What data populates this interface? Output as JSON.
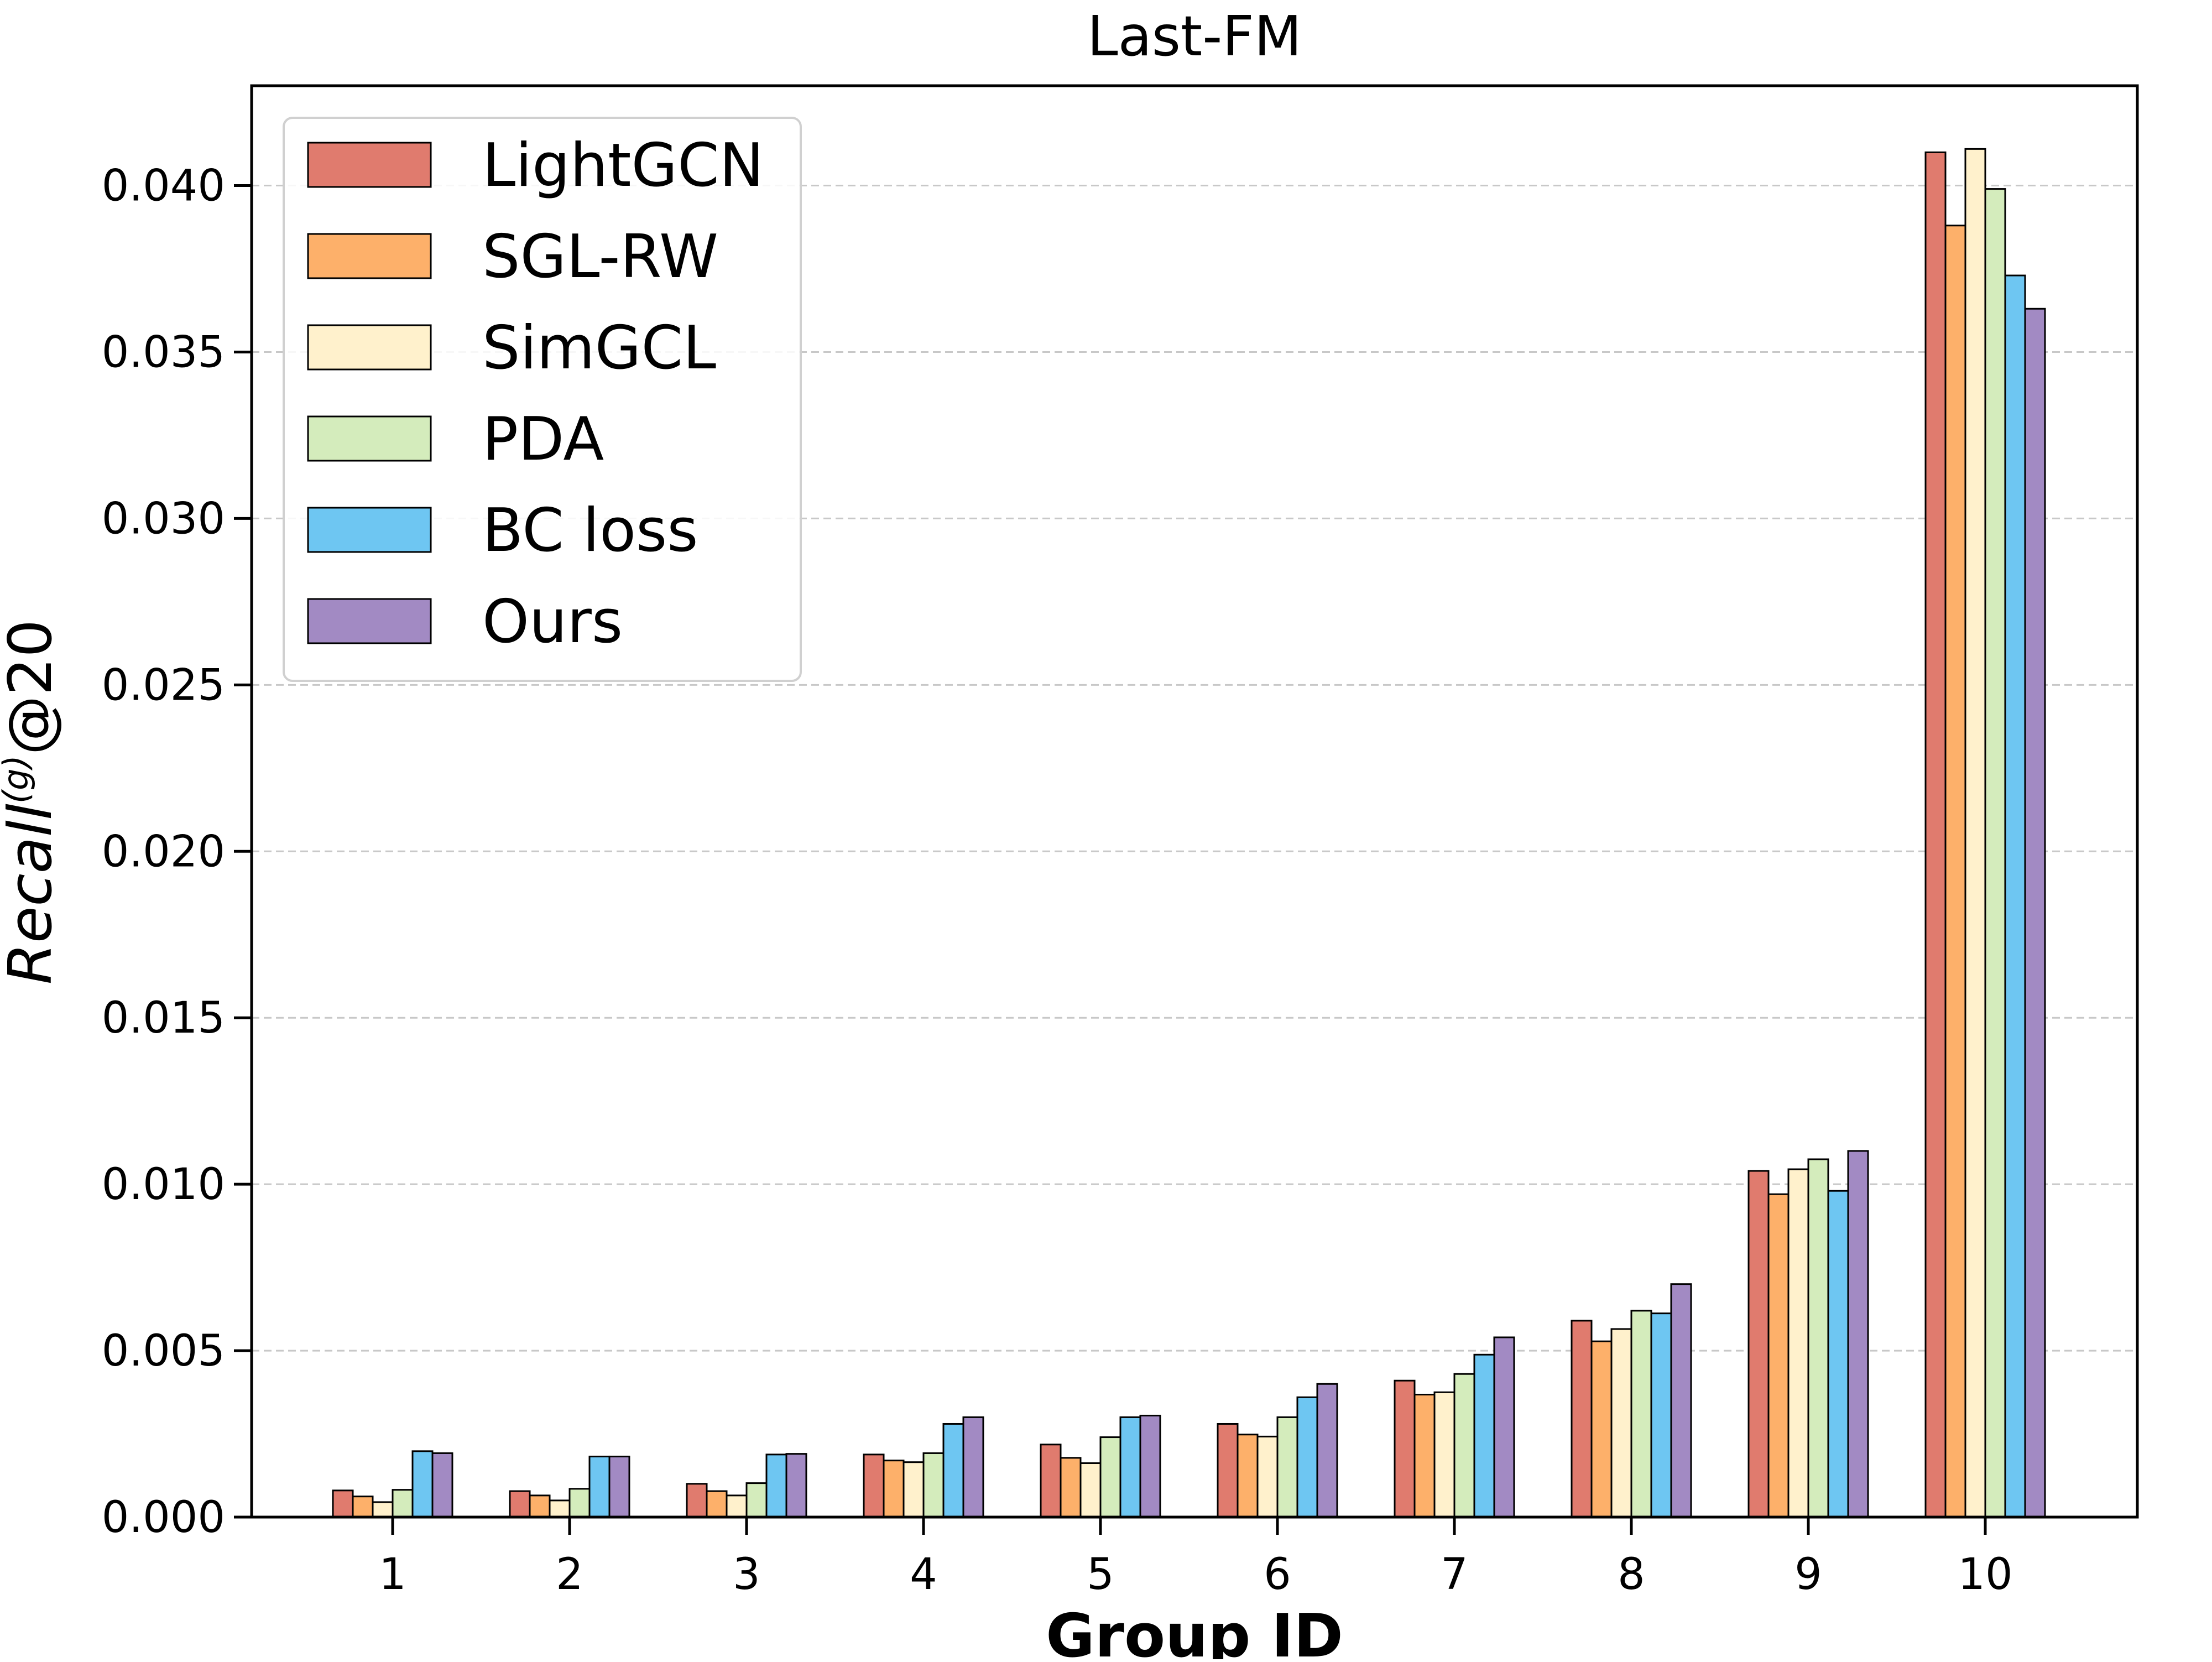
{
  "chart_data": {
    "type": "bar",
    "title": "Last-FM",
    "xlabel": "Group ID",
    "ylabel": "Recall@20",
    "ylabel_main": "Recall",
    "ylabel_sup": "(g)",
    "ylabel_suffix": "@20",
    "categories": [
      "1",
      "2",
      "3",
      "4",
      "5",
      "6",
      "7",
      "8",
      "9",
      "10"
    ],
    "ylim": [
      0,
      0.043
    ],
    "yticks": [
      "0.000",
      "0.005",
      "0.010",
      "0.015",
      "0.020",
      "0.025",
      "0.030",
      "0.035",
      "0.040"
    ],
    "grid": "horizontal dashed",
    "legend_position": "top-left",
    "series": [
      {
        "name": "LightGCN",
        "color": "#e07b6e",
        "values": [
          0.0008,
          0.00078,
          0.001,
          0.00188,
          0.00218,
          0.0028,
          0.0041,
          0.0059,
          0.0104,
          0.041
        ]
      },
      {
        "name": "SGL-RW",
        "color": "#fdb06a",
        "values": [
          0.00062,
          0.00065,
          0.00078,
          0.0017,
          0.00178,
          0.00248,
          0.00368,
          0.00528,
          0.0097,
          0.0388
        ]
      },
      {
        "name": "SimGCL",
        "color": "#fff1cc",
        "values": [
          0.00045,
          0.0005,
          0.00065,
          0.00165,
          0.00162,
          0.00242,
          0.00375,
          0.00565,
          0.01045,
          0.0411
        ]
      },
      {
        "name": "PDA",
        "color": "#d4ecbc",
        "values": [
          0.00082,
          0.00085,
          0.00102,
          0.00192,
          0.0024,
          0.003,
          0.0043,
          0.0062,
          0.01075,
          0.0399
        ]
      },
      {
        "name": "BC loss",
        "color": "#6ec6f2",
        "values": [
          0.00198,
          0.00182,
          0.00188,
          0.0028,
          0.003,
          0.0036,
          0.00488,
          0.00612,
          0.0098,
          0.0373
        ]
      },
      {
        "name": "Ours",
        "color": "#a28ac3",
        "values": [
          0.00192,
          0.00182,
          0.0019,
          0.003,
          0.00305,
          0.004,
          0.0054,
          0.007,
          0.011,
          0.0363
        ]
      }
    ]
  }
}
